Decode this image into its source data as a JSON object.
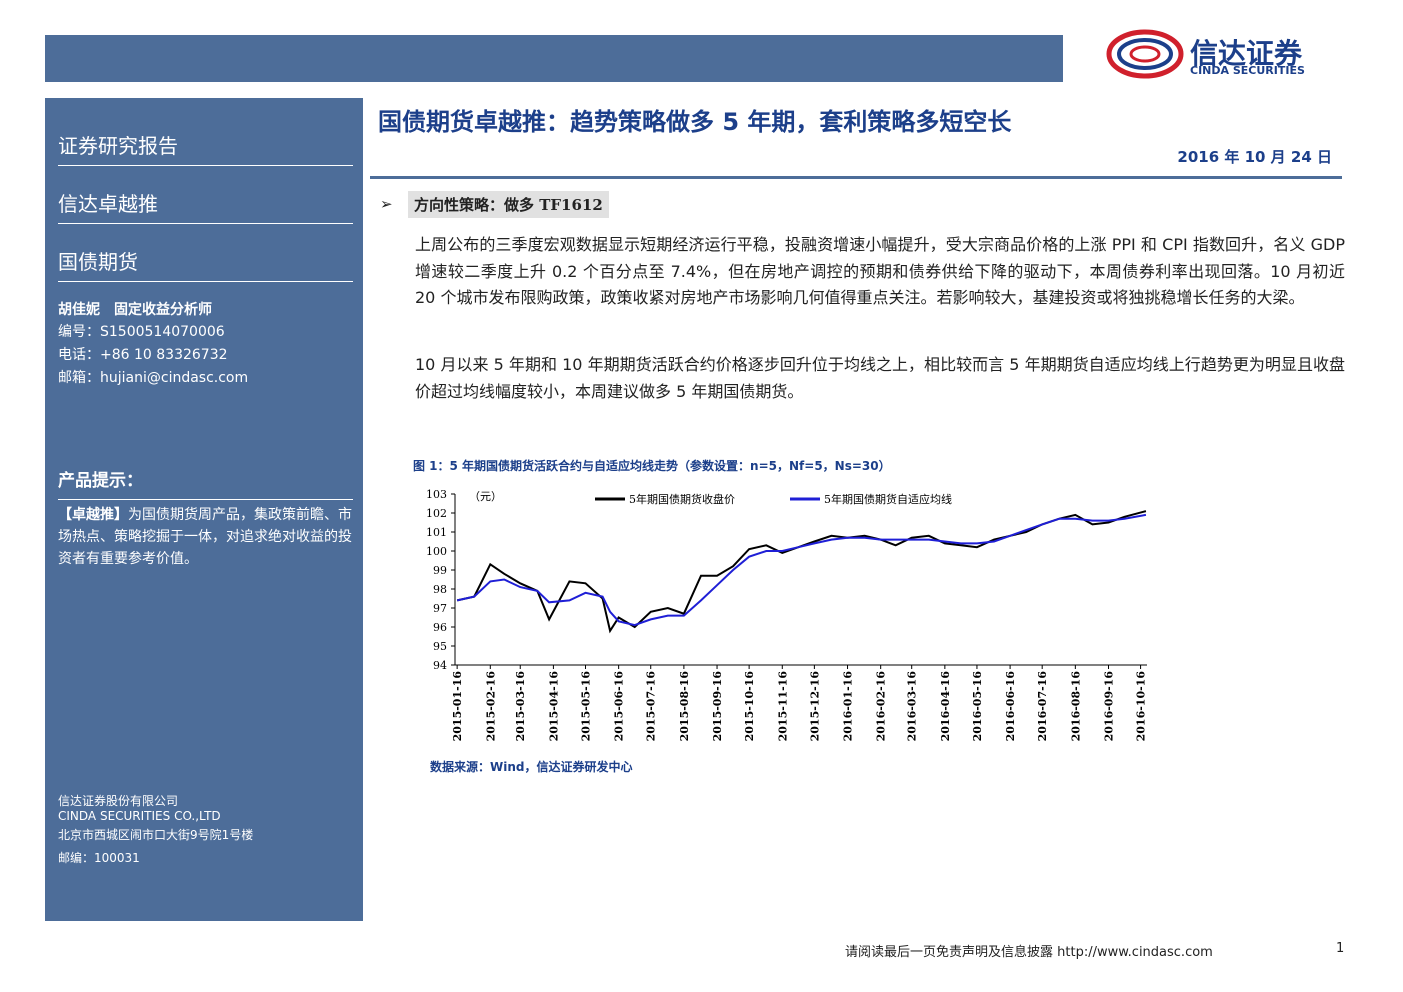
{
  "header": {
    "logo_name": "信达证券",
    "logo_en": "CINDA SECURITIES"
  },
  "sidebar": {
    "report_type": "证券研究报告",
    "product": "信达卓越推",
    "category": "国债期货",
    "analyst": "胡佳妮　固定收益分析师",
    "id_line": "编号：S1500514070006",
    "phone_line": "电话：+86 10 83326732",
    "mail_line": "邮箱：hujiani@cindasc.com",
    "tip_title": "产品提示：",
    "tip_bracket": "【卓越推】",
    "tip_text": "为国债期货周产品，集政策前瞻、市场热点、策略挖掘于一体，对追求绝对收益的投资者有重要参考价值。",
    "company": [
      "信达证券股份有限公司",
      "CINDA SECURITIES CO.,LTD",
      "北京市西城区闹市口大街9号院1号楼",
      "邮编：100031"
    ]
  },
  "main": {
    "title": "国债期货卓越推：趋势策略做多 5 年期，套利策略多短空长",
    "date": "2016 年 10 月 24 日",
    "section": "方向性策略：做多 TF1612",
    "paragraphs": [
      "上周公布的三季度宏观数据显示短期经济运行平稳，投融资增速小幅提升，受大宗商品价格的上涨 PPI 和 CPI 指数回升，名义 GDP 增速较二季度上升 0.2 个百分点至 7.4%，但在房地产调控的预期和债券供给下降的驱动下，本周债券利率出现回落。10 月初近 20 个城市发布限购政策，政策收紧对房地产市场影响几何值得重点关注。若影响较大，基建投资或将独挑稳增长任务的大梁。",
      "10 月以来 5 年期和 10 年期期货活跃合约价格逐步回升位于均线之上，相比较而言 5 年期期货自适应均线上行趋势更为明显且收盘价超过均线幅度较小，本周建议做多 5 年期国债期货。"
    ]
  },
  "figure": {
    "caption": "图 1：5 年期国债期货活跃合约与自适应均线走势（参数设置：n=5，Nf=5，Ns=30）",
    "source": "数据来源：Wind，信达证券研发中心"
  },
  "chart_data": {
    "type": "line",
    "y_label": "（元）",
    "x": [
      "2015-01-16",
      "2015-02-01",
      "2015-02-16",
      "2015-03-01",
      "2015-03-16",
      "2015-04-01",
      "2015-04-12",
      "2015-05-01",
      "2015-05-16",
      "2015-06-01",
      "2015-06-08",
      "2015-06-16",
      "2015-07-01",
      "2015-07-16",
      "2015-08-01",
      "2015-08-16",
      "2015-09-01",
      "2015-09-16",
      "2015-10-01",
      "2015-10-16",
      "2015-11-01",
      "2015-11-16",
      "2015-12-01",
      "2015-12-16",
      "2016-01-01",
      "2016-01-16",
      "2016-02-01",
      "2016-02-16",
      "2016-03-01",
      "2016-03-16",
      "2016-04-01",
      "2016-04-16",
      "2016-05-01",
      "2016-05-16",
      "2016-06-01",
      "2016-06-16",
      "2016-07-01",
      "2016-07-16",
      "2016-08-01",
      "2016-08-16",
      "2016-09-01",
      "2016-09-16",
      "2016-10-01",
      "2016-10-21"
    ],
    "series": [
      {
        "name": "5年期国债期货收盘价",
        "color": "#000000",
        "values": [
          97.4,
          97.6,
          99.3,
          98.8,
          98.3,
          97.9,
          96.4,
          98.4,
          98.3,
          97.5,
          95.8,
          96.5,
          96.0,
          96.8,
          97.0,
          96.7,
          98.7,
          98.7,
          99.2,
          100.1,
          100.3,
          99.9,
          100.2,
          100.5,
          100.8,
          100.7,
          100.8,
          100.6,
          100.3,
          100.7,
          100.8,
          100.4,
          100.3,
          100.2,
          100.6,
          100.8,
          101.0,
          101.4,
          101.7,
          101.9,
          101.4,
          101.5,
          101.8,
          102.1
        ]
      },
      {
        "name": "5年期国债期货自适应均线",
        "color": "#1f1fd6",
        "values": [
          97.4,
          97.6,
          98.4,
          98.5,
          98.1,
          97.9,
          97.3,
          97.4,
          97.8,
          97.6,
          96.8,
          96.3,
          96.1,
          96.4,
          96.6,
          96.6,
          97.4,
          98.2,
          99.0,
          99.7,
          100.0,
          100.0,
          100.2,
          100.4,
          100.6,
          100.7,
          100.7,
          100.6,
          100.6,
          100.6,
          100.6,
          100.5,
          100.4,
          100.4,
          100.5,
          100.8,
          101.1,
          101.4,
          101.7,
          101.7,
          101.6,
          101.6,
          101.7,
          101.9
        ]
      }
    ],
    "xlim": [
      "2015-01-14",
      "2016-10-22"
    ],
    "xticks": [
      "2015-01-16",
      "2015-02-16",
      "2015-03-16",
      "2015-04-16",
      "2015-05-16",
      "2015-06-16",
      "2015-07-16",
      "2015-08-16",
      "2015-09-16",
      "2015-10-16",
      "2015-11-16",
      "2015-12-16",
      "2016-01-16",
      "2016-02-16",
      "2016-03-16",
      "2016-04-16",
      "2016-05-16",
      "2016-06-16",
      "2016-07-16",
      "2016-08-16",
      "2016-09-16",
      "2016-10-16"
    ],
    "ylim": [
      94,
      103
    ],
    "yticks": [
      94,
      95,
      96,
      97,
      98,
      99,
      100,
      101,
      102,
      103
    ]
  },
  "footer": {
    "disclaimer": "请阅读最后一页免责声明及信息披露 http://www.cindasc.com",
    "page": "1"
  }
}
